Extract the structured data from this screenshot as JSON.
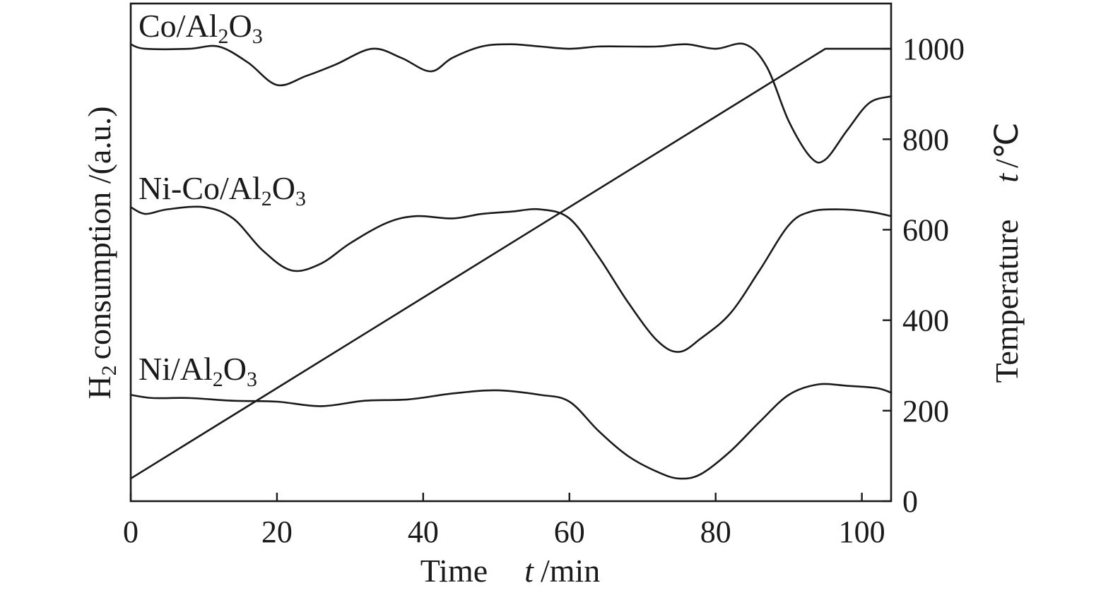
{
  "chart_data": {
    "type": "line",
    "title": "",
    "xlabel": "Time",
    "xlabel_symbol": "t",
    "xlabel_unit": "/min",
    "ylabel_left": "consumption /(a.u.)",
    "ylabel_left_prefix": "H",
    "ylabel_left_sub": "2",
    "ylabel_right": "Temperature",
    "ylabel_right_symbol": "t",
    "ylabel_right_unit": "/℃",
    "xlim": [
      0,
      104
    ],
    "ylim_right": [
      0,
      1100
    ],
    "x_ticks": [
      0,
      20,
      40,
      60,
      80,
      100
    ],
    "x_tick_labels": [
      "0",
      "20",
      "40",
      "60",
      "80",
      "100"
    ],
    "y_right_ticks": [
      0,
      200,
      400,
      600,
      800,
      1000
    ],
    "y_right_tick_labels": [
      "0",
      "200",
      "400",
      "600",
      "800",
      "1000"
    ],
    "grid": false,
    "colors": {
      "line": "#1a1a1a",
      "background": "#ffffff"
    },
    "series": [
      {
        "name": "Temperature",
        "axis": "right",
        "x": [
          0,
          95,
          104
        ],
        "y": [
          50,
          1000,
          1000
        ]
      },
      {
        "name": "Co/Al2O3",
        "label": {
          "base": "Co/Al",
          "sub1": "2",
          "mid": "O",
          "sub2": "3"
        },
        "axis": "left",
        "x": [
          0,
          2,
          8,
          12,
          16,
          20,
          24,
          28,
          33,
          37,
          41,
          44,
          48,
          52,
          56,
          60,
          64,
          68,
          72,
          76,
          80,
          84,
          87,
          90,
          93,
          95,
          98,
          101,
          104
        ],
        "y": [
          1010,
          1000,
          1000,
          1005,
          970,
          920,
          940,
          965,
          1000,
          980,
          950,
          980,
          1005,
          1010,
          1005,
          1000,
          1005,
          1005,
          1005,
          1010,
          1000,
          1010,
          960,
          840,
          760,
          755,
          820,
          880,
          895
        ]
      },
      {
        "name": "Ni-Co/Al2O3",
        "label": {
          "base": "Ni-Co/Al",
          "sub1": "2",
          "mid": "O",
          "sub2": "3"
        },
        "axis": "left",
        "x": [
          0,
          2,
          5,
          10,
          14,
          18,
          22,
          26,
          30,
          35,
          39,
          44,
          48,
          52,
          56,
          60,
          64,
          68,
          72,
          75,
          78,
          82,
          86,
          90,
          93,
          97,
          101,
          104
        ],
        "y": [
          650,
          635,
          645,
          650,
          625,
          555,
          510,
          525,
          570,
          615,
          630,
          625,
          635,
          640,
          645,
          625,
          540,
          440,
          355,
          330,
          360,
          415,
          510,
          610,
          640,
          645,
          640,
          630
        ]
      },
      {
        "name": "Ni/Al2O3",
        "label": {
          "base": "Ni/Al",
          "sub1": "2",
          "mid": "O",
          "sub2": "3"
        },
        "axis": "left",
        "x": [
          0,
          3,
          8,
          14,
          20,
          26,
          32,
          38,
          44,
          50,
          56,
          60,
          64,
          68,
          72,
          75,
          78,
          82,
          86,
          90,
          94,
          98,
          102,
          104
        ],
        "y": [
          235,
          228,
          228,
          222,
          220,
          210,
          222,
          225,
          238,
          245,
          235,
          220,
          155,
          100,
          65,
          50,
          60,
          110,
          175,
          235,
          258,
          255,
          250,
          240
        ]
      }
    ]
  }
}
